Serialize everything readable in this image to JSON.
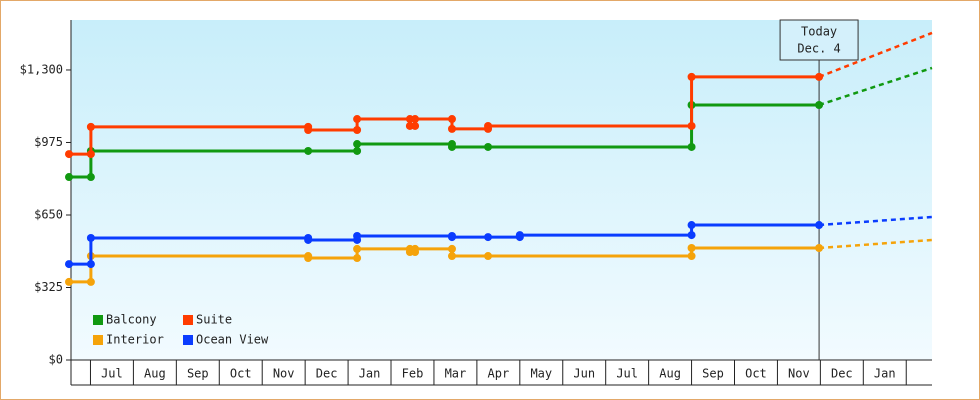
{
  "chart_data": {
    "type": "line",
    "annotation": [
      "Today",
      "Dec. 4"
    ],
    "today_x": 17.97,
    "xlim": [
      0.5,
      20.6
    ],
    "xticks": [
      {
        "value": 1.5,
        "label": "Jul"
      },
      {
        "value": 2.5,
        "label": "Aug"
      },
      {
        "value": 3.5,
        "label": "Sep"
      },
      {
        "value": 4.5,
        "label": "Oct"
      },
      {
        "value": 5.5,
        "label": "Nov"
      },
      {
        "value": 6.5,
        "label": "Dec"
      },
      {
        "value": 7.5,
        "label": "Jan"
      },
      {
        "value": 8.5,
        "label": "Feb"
      },
      {
        "value": 9.5,
        "label": "Mar"
      },
      {
        "value": 10.5,
        "label": "Apr"
      },
      {
        "value": 11.5,
        "label": "May"
      },
      {
        "value": 12.5,
        "label": "Jun"
      },
      {
        "value": 13.5,
        "label": "Jul"
      },
      {
        "value": 14.5,
        "label": "Aug"
      },
      {
        "value": 15.5,
        "label": "Sep"
      },
      {
        "value": 16.5,
        "label": "Oct"
      },
      {
        "value": 17.5,
        "label": "Nov"
      },
      {
        "value": 18.5,
        "label": "Dec"
      },
      {
        "value": 19.5,
        "label": "Jan"
      }
    ],
    "ylim": [
      0,
      1524
    ],
    "yticks": [
      {
        "value": 0,
        "label": "$0"
      },
      {
        "value": 325,
        "label": "$325"
      },
      {
        "value": 650,
        "label": "$650"
      },
      {
        "value": 975,
        "label": "$975"
      },
      {
        "value": 1300,
        "label": "$1,300"
      }
    ],
    "legend": "bottom-left",
    "series": [
      {
        "name": "Balcony",
        "color": "#119911",
        "x": [
          0.5,
          1.01,
          1.01,
          6.07,
          7.21,
          7.21,
          9.42,
          9.42,
          10.26,
          15.0,
          15.0,
          17.97
        ],
        "values": [
          820,
          820,
          937,
          937,
          937,
          968,
          968,
          955,
          955,
          955,
          1143,
          1143
        ],
        "projection": {
          "x": 20.6,
          "value": 1309
        }
      },
      {
        "name": "Suite",
        "color": "#ff3c00",
        "x": [
          0.5,
          1.01,
          1.01,
          6.07,
          6.07,
          7.21,
          7.21,
          8.44,
          8.44,
          8.56,
          8.56,
          9.42,
          9.42,
          10.26,
          10.26,
          15.0,
          15.0,
          17.97
        ],
        "values": [
          923,
          923,
          1045,
          1045,
          1031,
          1031,
          1080,
          1080,
          1049,
          1049,
          1080,
          1080,
          1036,
          1036,
          1049,
          1049,
          1269,
          1269
        ],
        "projection": {
          "x": 20.6,
          "value": 1466
        }
      },
      {
        "name": "Interior",
        "color": "#f5a30a",
        "x": [
          0.5,
          1.01,
          1.01,
          6.07,
          6.07,
          7.21,
          7.21,
          8.44,
          8.44,
          8.56,
          8.56,
          9.42,
          9.42,
          10.26,
          15.0,
          15.0,
          17.97
        ],
        "values": [
          350,
          350,
          466,
          466,
          457,
          457,
          498,
          498,
          484,
          484,
          498,
          498,
          466,
          466,
          466,
          502,
          502
        ],
        "projection": {
          "x": 20.6,
          "value": 538
        }
      },
      {
        "name": "Ocean View",
        "color": "#0a3cff",
        "x": [
          0.5,
          1.01,
          1.01,
          6.07,
          6.07,
          7.21,
          7.21,
          9.42,
          9.42,
          10.26,
          11.0,
          11.0,
          15.0,
          15.0,
          17.97
        ],
        "values": [
          430,
          430,
          547,
          547,
          538,
          538,
          556,
          556,
          551,
          551,
          551,
          560,
          560,
          605,
          605
        ],
        "projection": {
          "x": 20.6,
          "value": 641
        }
      }
    ]
  }
}
